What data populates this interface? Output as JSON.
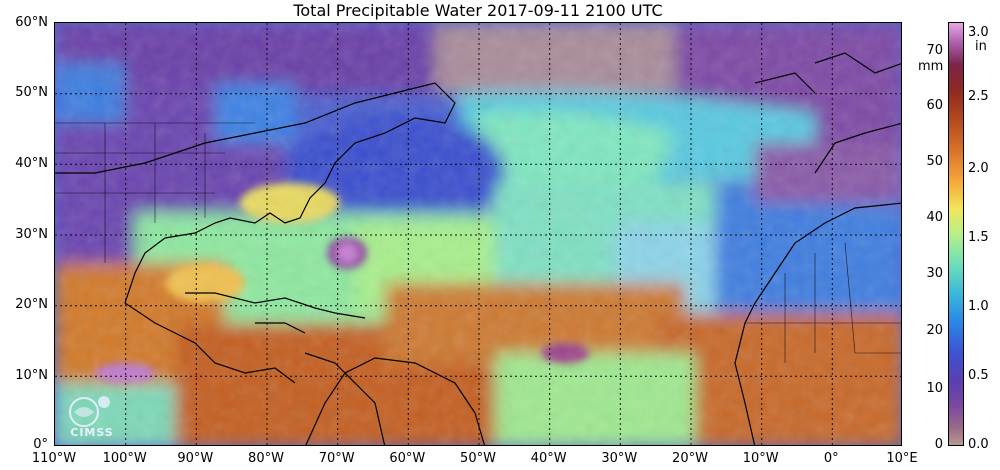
{
  "title": "Total Precipitable Water  2017-09-11 2100 UTC",
  "lat_labels": [
    "60°N",
    "50°N",
    "40°N",
    "30°N",
    "20°N",
    "10°N",
    "0°"
  ],
  "lon_labels": [
    "110°W",
    "100°W",
    "90°W",
    "80°W",
    "70°W",
    "60°W",
    "50°W",
    "40°W",
    "30°W",
    "20°W",
    "10°W",
    "0°",
    "10°E"
  ],
  "colorbar": {
    "mm_unit": "mm",
    "in_unit": "in",
    "mm_ticks": [
      "70",
      "60",
      "50",
      "40",
      "30",
      "20",
      "10",
      "0"
    ],
    "in_ticks": [
      "3.0",
      "2.5",
      "2.0",
      "1.5",
      "1.0",
      "0.5",
      "0.0"
    ]
  },
  "logo": {
    "text": "CIMSS"
  },
  "colors": {
    "dry": "#5b3fb0",
    "moist": "#6fe0b8",
    "very_moist": "#d9702a",
    "saturated": "#8f2a22"
  }
}
